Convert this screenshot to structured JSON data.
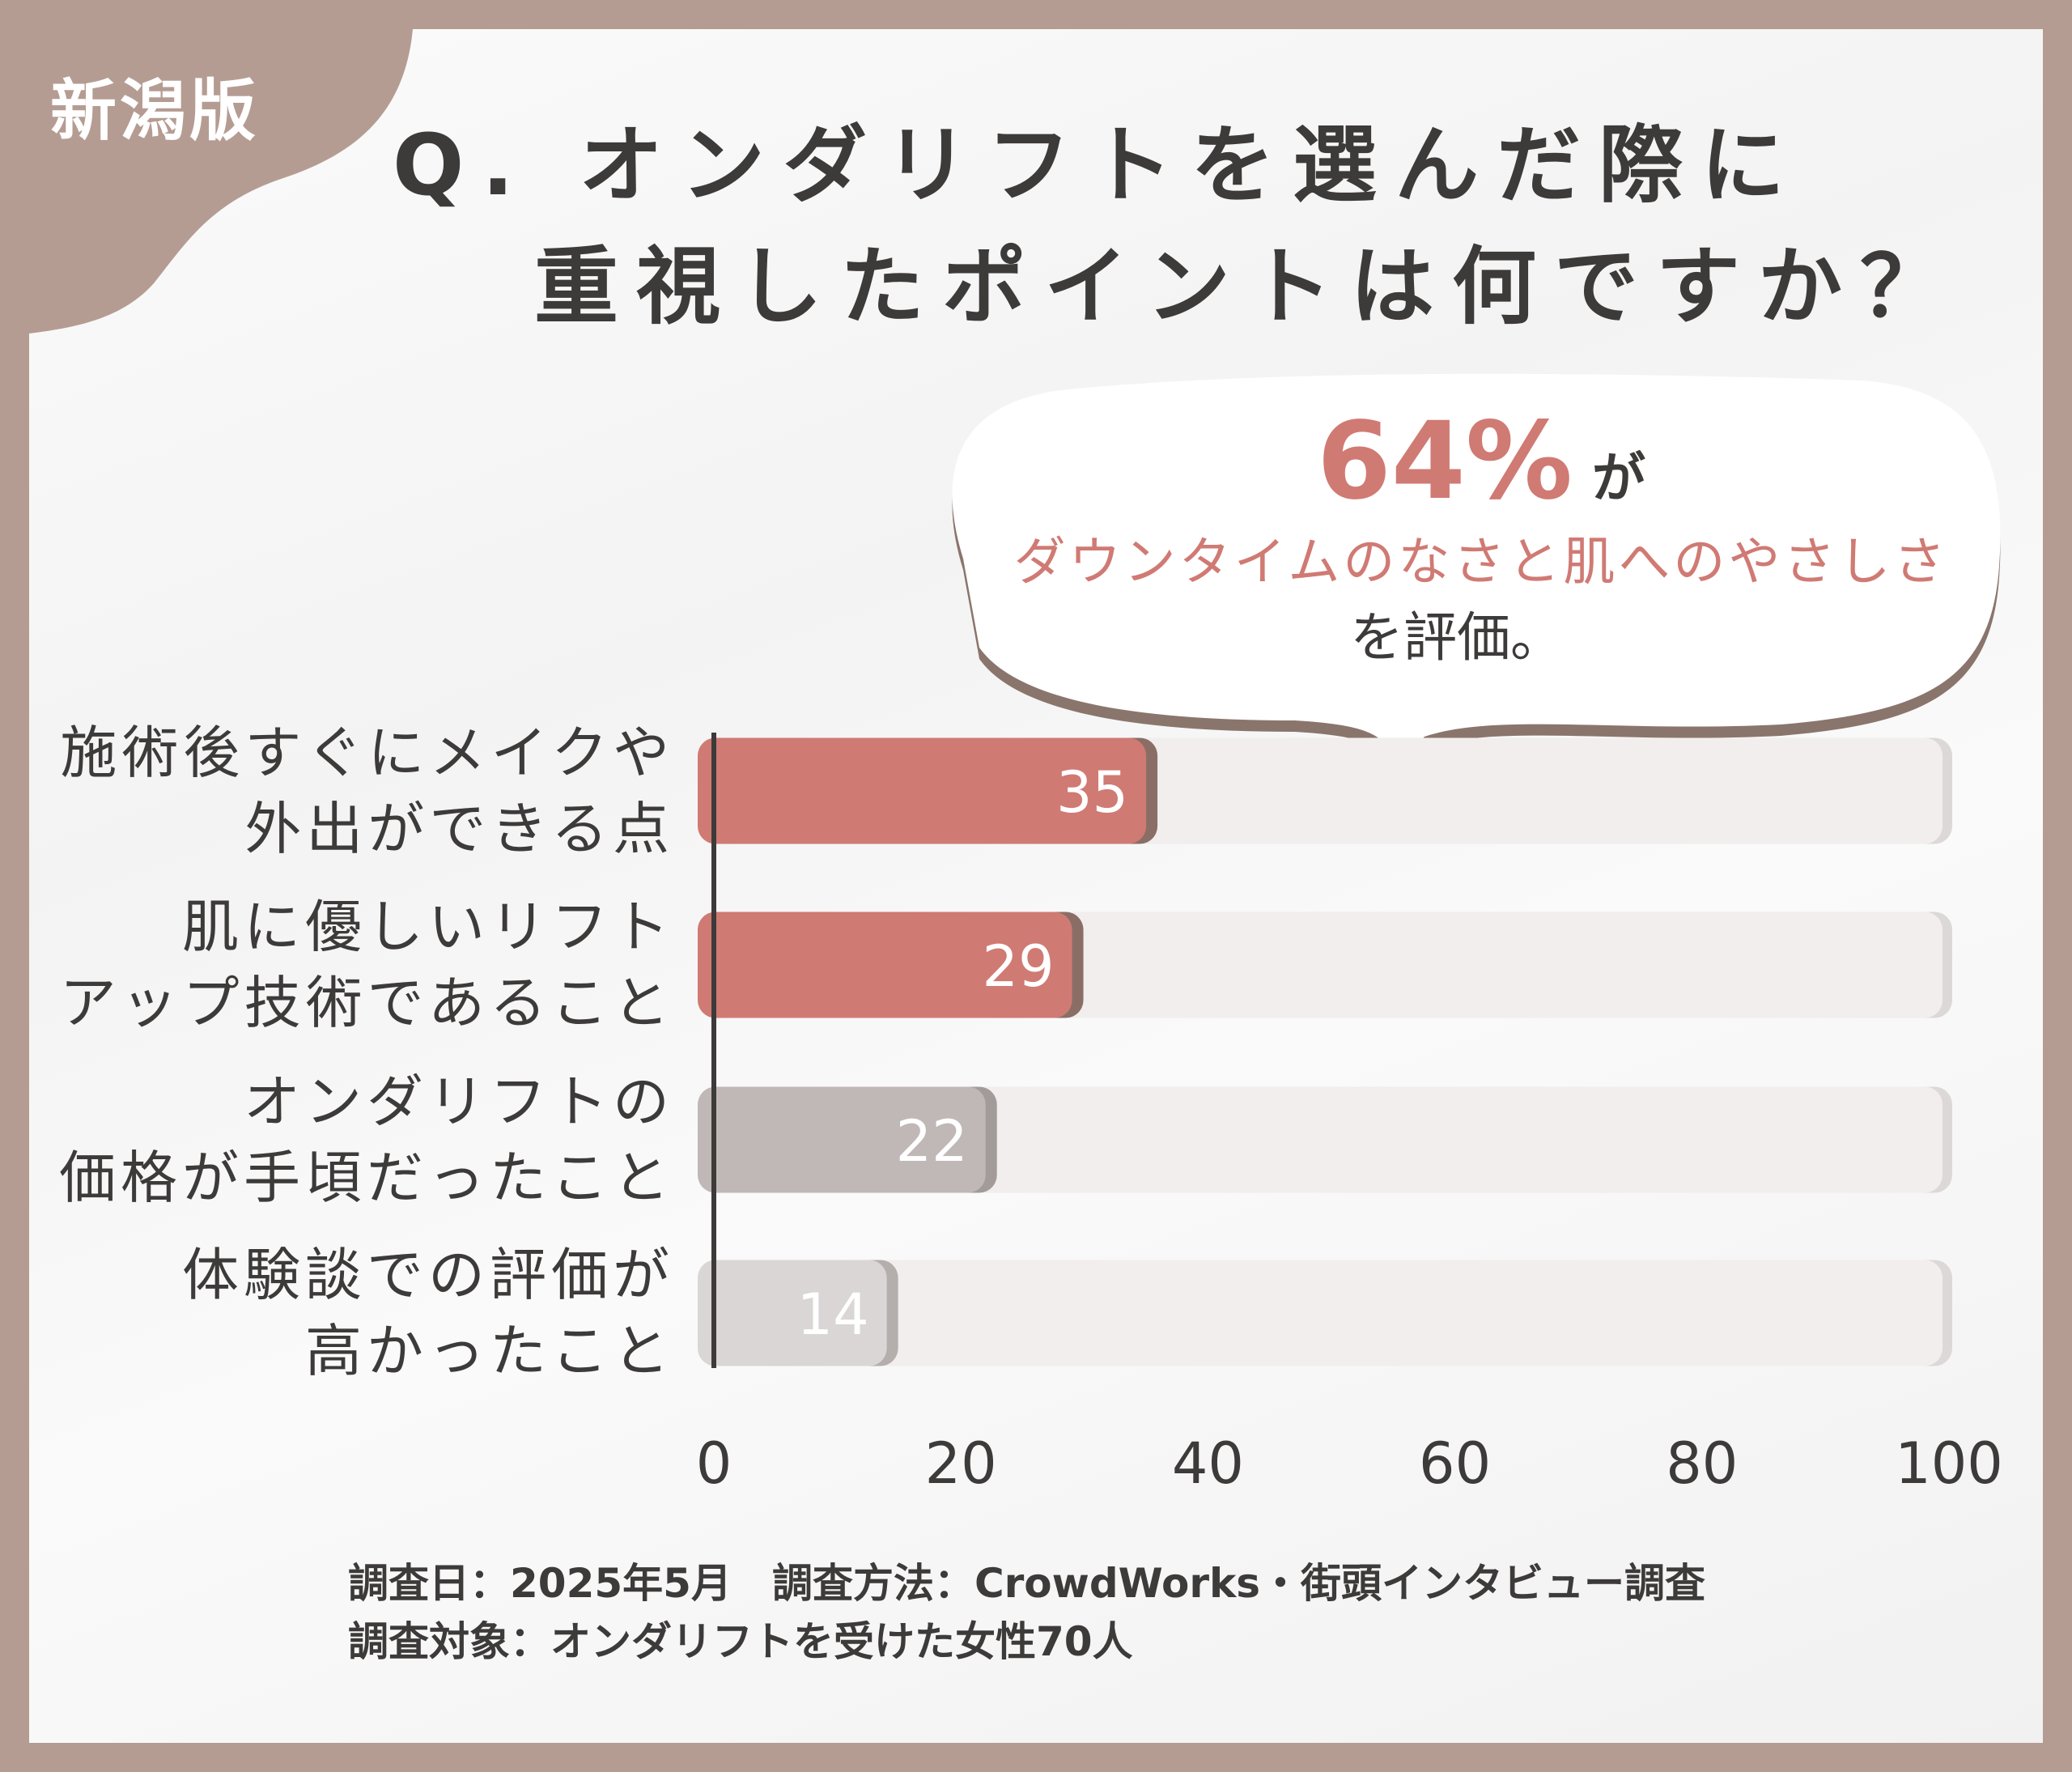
{
  "badge": "新潟版",
  "title": {
    "line1": "Q. オンダリフトを選んだ際に",
    "line2": "重視したポイントは何ですか？"
  },
  "callout": {
    "percent": "64%",
    "particle": "が",
    "highlight": "ダウンタイムのなさと肌へのやさしさ",
    "suffix": "を評価。"
  },
  "colors": {
    "frame": "#b59c93",
    "accent": "#d07a74",
    "gray": "#c0b8b6",
    "light_gray": "#dad6d6",
    "track": "#f1eeed",
    "text": "#3d3a3a"
  },
  "chart_data": {
    "type": "bar",
    "orientation": "horizontal",
    "categories": [
      [
        "施術後すぐにメイクや",
        "外出ができる点"
      ],
      [
        "肌に優しいリフト",
        "アップ技術であること"
      ],
      [
        "オンダリフトの",
        "価格が手頃だったこと"
      ],
      [
        "体験談での評価が",
        "高かったこと"
      ]
    ],
    "values": [
      35,
      29,
      22,
      14
    ],
    "value_labels": [
      "35",
      "29",
      "22",
      "14"
    ],
    "bar_colors": [
      "#d07a74",
      "#d07a74",
      "#c0b8b6",
      "#dad6d6"
    ],
    "xlim": [
      0,
      100
    ],
    "xticks": [
      "0",
      "20",
      "40",
      "60",
      "80",
      "100"
    ],
    "grid": false
  },
  "footer": {
    "line1": "調査日：2025年5月　調査方法：CrowdWorks・街頭インタビュー調査",
    "line2": "調査対象：オンダリフトを受けた女性70人"
  }
}
